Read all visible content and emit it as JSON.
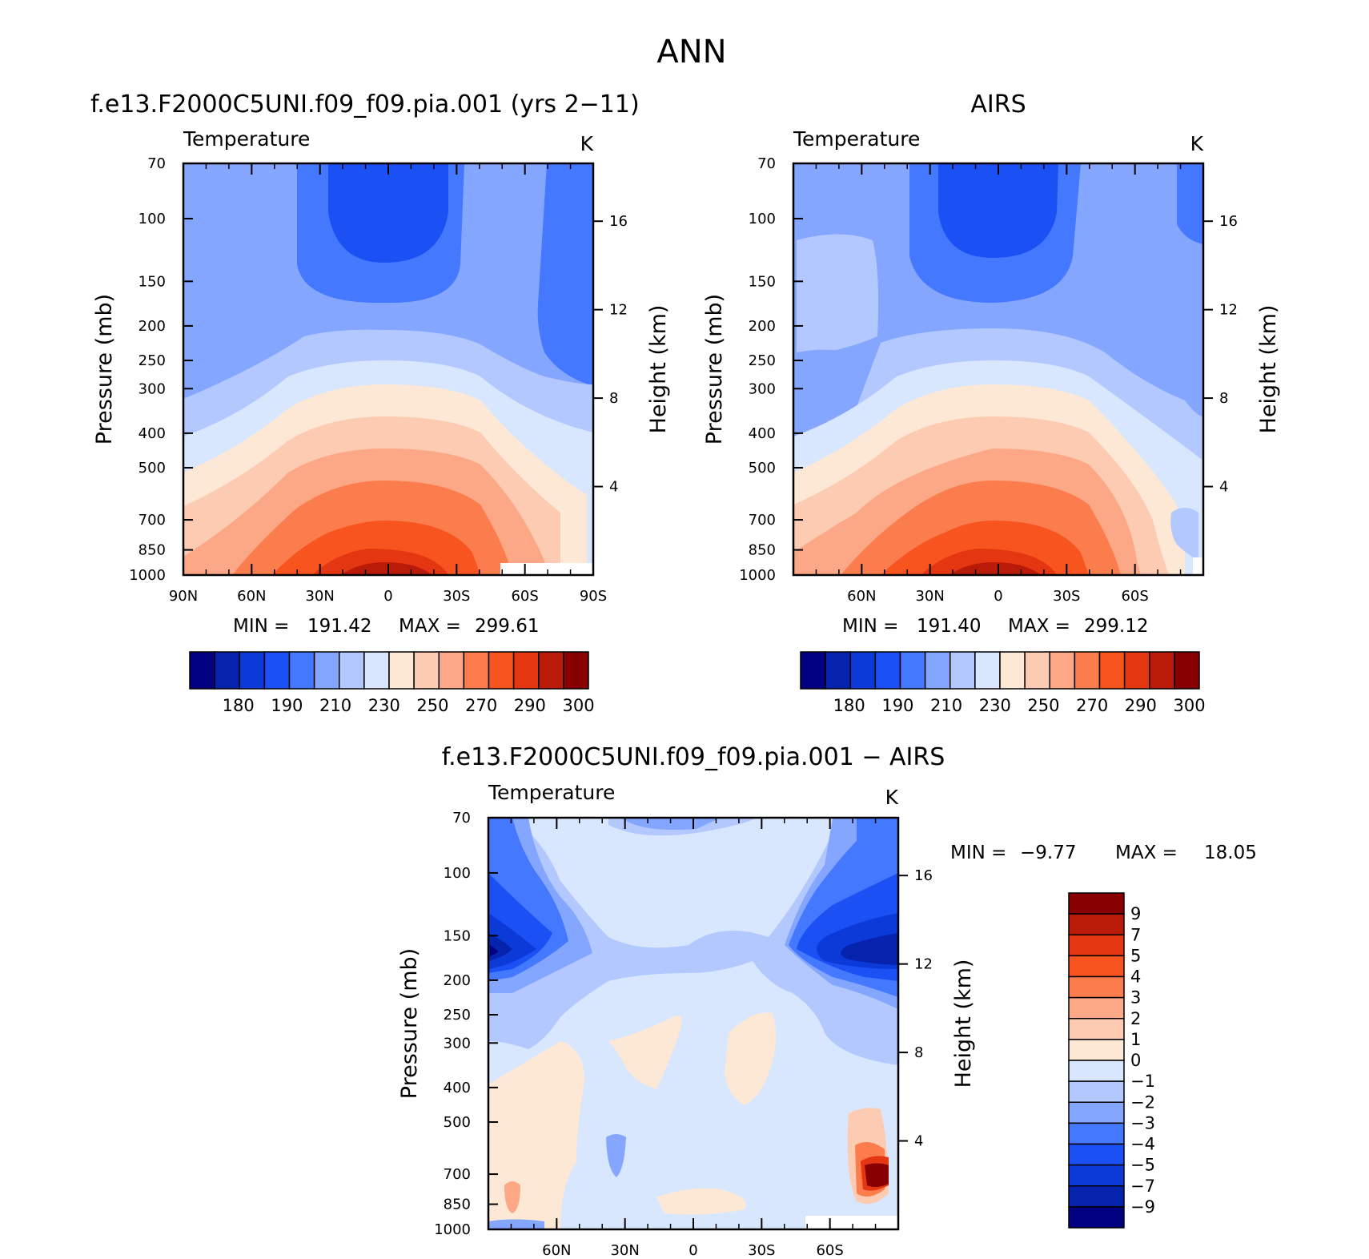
{
  "figure": {
    "title": "ANN"
  },
  "chart_data": [
    {
      "type": "heatmap",
      "title": "f.e13.F2000C5UNI.f09_f09.pia.001 (yrs 2−11)",
      "variable": "Temperature",
      "units": "K",
      "ylabel": "Pressure (mb)",
      "ylabel2": "Height (km)",
      "x_ticks": [
        "90N",
        "60N",
        "30N",
        "0",
        "30S",
        "60S",
        "90S"
      ],
      "y_ticks": [
        "70",
        "100",
        "150",
        "200",
        "250",
        "300",
        "400",
        "500",
        "700",
        "850",
        "1000"
      ],
      "y_ticks_values": [
        70,
        100,
        150,
        200,
        250,
        300,
        400,
        500,
        700,
        850,
        1000
      ],
      "y2_ticks": [
        "4",
        "8",
        "12",
        "16"
      ],
      "y2_ticks_values": [
        4,
        8,
        12,
        16
      ],
      "ylim": [
        1000,
        70
      ],
      "xlim": [
        90,
        -90
      ],
      "min": "191.42",
      "max": "299.61",
      "min_label": "MIN =",
      "max_label": "MAX =",
      "colorbar_labels": [
        "180",
        "190",
        "210",
        "230",
        "250",
        "270",
        "290",
        "300"
      ]
    },
    {
      "type": "heatmap",
      "title": "AIRS",
      "variable": "Temperature",
      "units": "K",
      "ylabel": "Pressure (mb)",
      "ylabel2": "Height (km)",
      "x_ticks": [
        "60N",
        "30N",
        "0",
        "30S",
        "60S"
      ],
      "y_ticks": [
        "70",
        "100",
        "150",
        "200",
        "250",
        "300",
        "400",
        "500",
        "700",
        "850",
        "1000"
      ],
      "y_ticks_values": [
        70,
        100,
        150,
        200,
        250,
        300,
        400,
        500,
        700,
        850,
        1000
      ],
      "y2_ticks": [
        "4",
        "8",
        "12",
        "16"
      ],
      "y2_ticks_values": [
        4,
        8,
        12,
        16
      ],
      "ylim": [
        1000,
        70
      ],
      "xlim": [
        90,
        -90
      ],
      "min": "191.40",
      "max": "299.12",
      "min_label": "MIN =",
      "max_label": "MAX =",
      "colorbar_labels": [
        "180",
        "190",
        "210",
        "230",
        "250",
        "270",
        "290",
        "300"
      ]
    },
    {
      "type": "heatmap",
      "title": "f.e13.F2000C5UNI.f09_f09.pia.001 − AIRS",
      "variable": "Temperature",
      "units": "K",
      "ylabel": "Pressure (mb)",
      "ylabel2": "Height (km)",
      "x_ticks": [
        "60N",
        "30N",
        "0",
        "30S",
        "60S"
      ],
      "y_ticks": [
        "70",
        "100",
        "150",
        "200",
        "250",
        "300",
        "400",
        "500",
        "700",
        "850",
        "1000"
      ],
      "y_ticks_values": [
        70,
        100,
        150,
        200,
        250,
        300,
        400,
        500,
        700,
        850,
        1000
      ],
      "y2_ticks": [
        "4",
        "8",
        "12",
        "16"
      ],
      "y2_ticks_values": [
        4,
        8,
        12,
        16
      ],
      "ylim": [
        1000,
        70
      ],
      "xlim": [
        90,
        -90
      ],
      "min": "−9.77",
      "max": "18.05",
      "min_label": "MIN =",
      "max_label": "MAX =",
      "colorbar_labels": [
        "9",
        "7",
        "5",
        "4",
        "3",
        "2",
        "1",
        "0",
        "−1",
        "−2",
        "−3",
        "−4",
        "−5",
        "−7",
        "−9"
      ]
    }
  ],
  "colors": {
    "temperature_levels": [
      "#000080",
      "#0623ad",
      "#0b3ad9",
      "#1b50f5",
      "#4378ff",
      "#85a6ff",
      "#b3c8ff",
      "#d8e7fe",
      "#fde8d6",
      "#fdcbb1",
      "#fca886",
      "#fb7c4d",
      "#f8541f",
      "#e43610",
      "#b91b08",
      "#880000"
    ],
    "difference_levels": [
      "#880000",
      "#b91b08",
      "#e43610",
      "#f8541f",
      "#fb7c4d",
      "#fca886",
      "#fdcbb1",
      "#fde8d6",
      "#d8e7fe",
      "#b3c8ff",
      "#85a6ff",
      "#4378ff",
      "#1b50f5",
      "#0b3ad9",
      "#0623ad",
      "#000080"
    ]
  }
}
